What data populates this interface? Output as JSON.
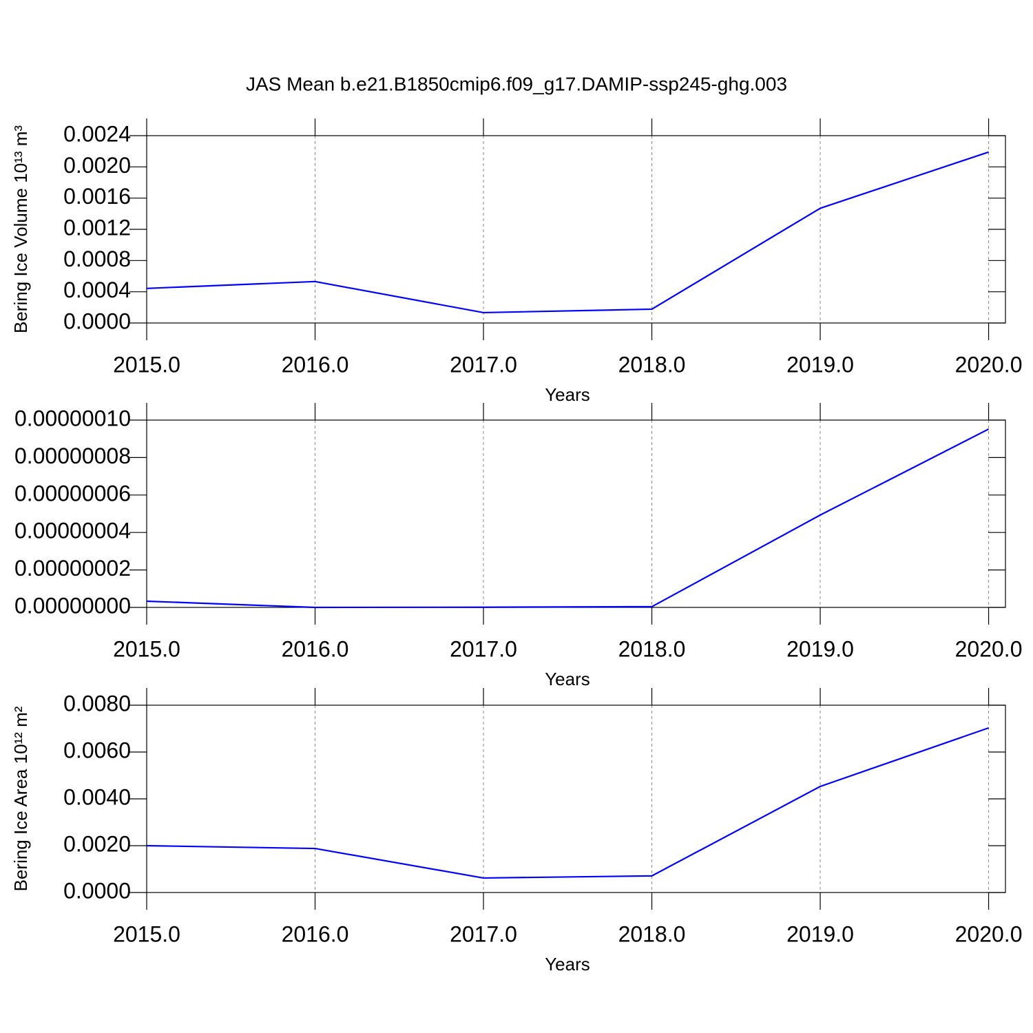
{
  "chart_data": [
    {
      "type": "line",
      "title": "JAS Mean b.e21.B1850cmip6.f09_g17.DAMIP-ssp245-ghg.003",
      "ylabel": "Bering Ice Volume 10¹³ m³",
      "xlabel": "Years",
      "x": [
        2015,
        2016,
        2017,
        2018,
        2019,
        2020
      ],
      "values": [
        0.000443,
        0.000531,
        0.000133,
        0.000177,
        0.00147,
        0.00219
      ],
      "color": "#0000ff",
      "xlim": [
        2015,
        2020.1
      ],
      "xticks": [
        {
          "value": 2015,
          "label": "2015.0"
        },
        {
          "value": 2016,
          "label": "2016.0"
        },
        {
          "value": 2017,
          "label": "2017.0"
        },
        {
          "value": 2018,
          "label": "2018.0"
        },
        {
          "value": 2019,
          "label": "2019.0"
        },
        {
          "value": 2020,
          "label": "2020.0"
        }
      ],
      "ylim": [
        0,
        0.0024
      ],
      "yticks": [
        {
          "value": 0,
          "label": "0.0000"
        },
        0.0004,
        0.0008,
        0.0012,
        0.0016,
        {
          "value": 0.002,
          "label": "0.0020"
        },
        0.0024
      ],
      "xgrid": true
    },
    {
      "type": "line",
      "xlabel": "Years",
      "x": [
        2015,
        2016,
        2017,
        2018,
        2019,
        2020
      ],
      "values": [
        3.3e-09,
        0,
        1e-10,
        4e-10,
        4.93e-08,
        9.52e-08
      ],
      "color": "#0000ff",
      "xlim": [
        2015,
        2020.1
      ],
      "xticks": [
        {
          "value": 2015,
          "label": "2015.0"
        },
        {
          "value": 2016,
          "label": "2016.0"
        },
        {
          "value": 2017,
          "label": "2017.0"
        },
        {
          "value": 2018,
          "label": "2018.0"
        },
        {
          "value": 2019,
          "label": "2019.0"
        },
        {
          "value": 2020,
          "label": "2020.0"
        }
      ],
      "ylim": [
        0,
        1e-07
      ],
      "yticks": [
        {
          "value": 0,
          "label": "0.00000000"
        },
        {
          "value": 2e-08,
          "label": "0.00000002"
        },
        {
          "value": 4e-08,
          "label": "0.00000004"
        },
        {
          "value": 6e-08,
          "label": "0.00000006"
        },
        {
          "value": 8e-08,
          "label": "0.00000008"
        },
        {
          "value": 1e-07,
          "label": "0.00000010"
        }
      ],
      "xgrid": true
    },
    {
      "type": "line",
      "ylabel": "Bering Ice Area 10¹² m²",
      "xlabel": "Years",
      "x": [
        2015,
        2016,
        2017,
        2018,
        2019,
        2020
      ],
      "values": [
        0.002,
        0.00188,
        0.00062,
        0.00071,
        0.00453,
        0.00703
      ],
      "color": "#0000ff",
      "xlim": [
        2015,
        2020.1
      ],
      "xticks": [
        {
          "value": 2015,
          "label": "2015.0"
        },
        {
          "value": 2016,
          "label": "2016.0"
        },
        {
          "value": 2017,
          "label": "2017.0"
        },
        {
          "value": 2018,
          "label": "2018.0"
        },
        {
          "value": 2019,
          "label": "2019.0"
        },
        {
          "value": 2020,
          "label": "2020.0"
        }
      ],
      "ylim": [
        0,
        0.008
      ],
      "yticks": [
        {
          "value": 0,
          "label": "0.0000"
        },
        {
          "value": 0.002,
          "label": "0.0020"
        },
        {
          "value": 0.004,
          "label": "0.0040"
        },
        {
          "value": 0.006,
          "label": "0.0060"
        },
        {
          "value": 0.008,
          "label": "0.0080"
        }
      ],
      "xgrid": true
    }
  ]
}
